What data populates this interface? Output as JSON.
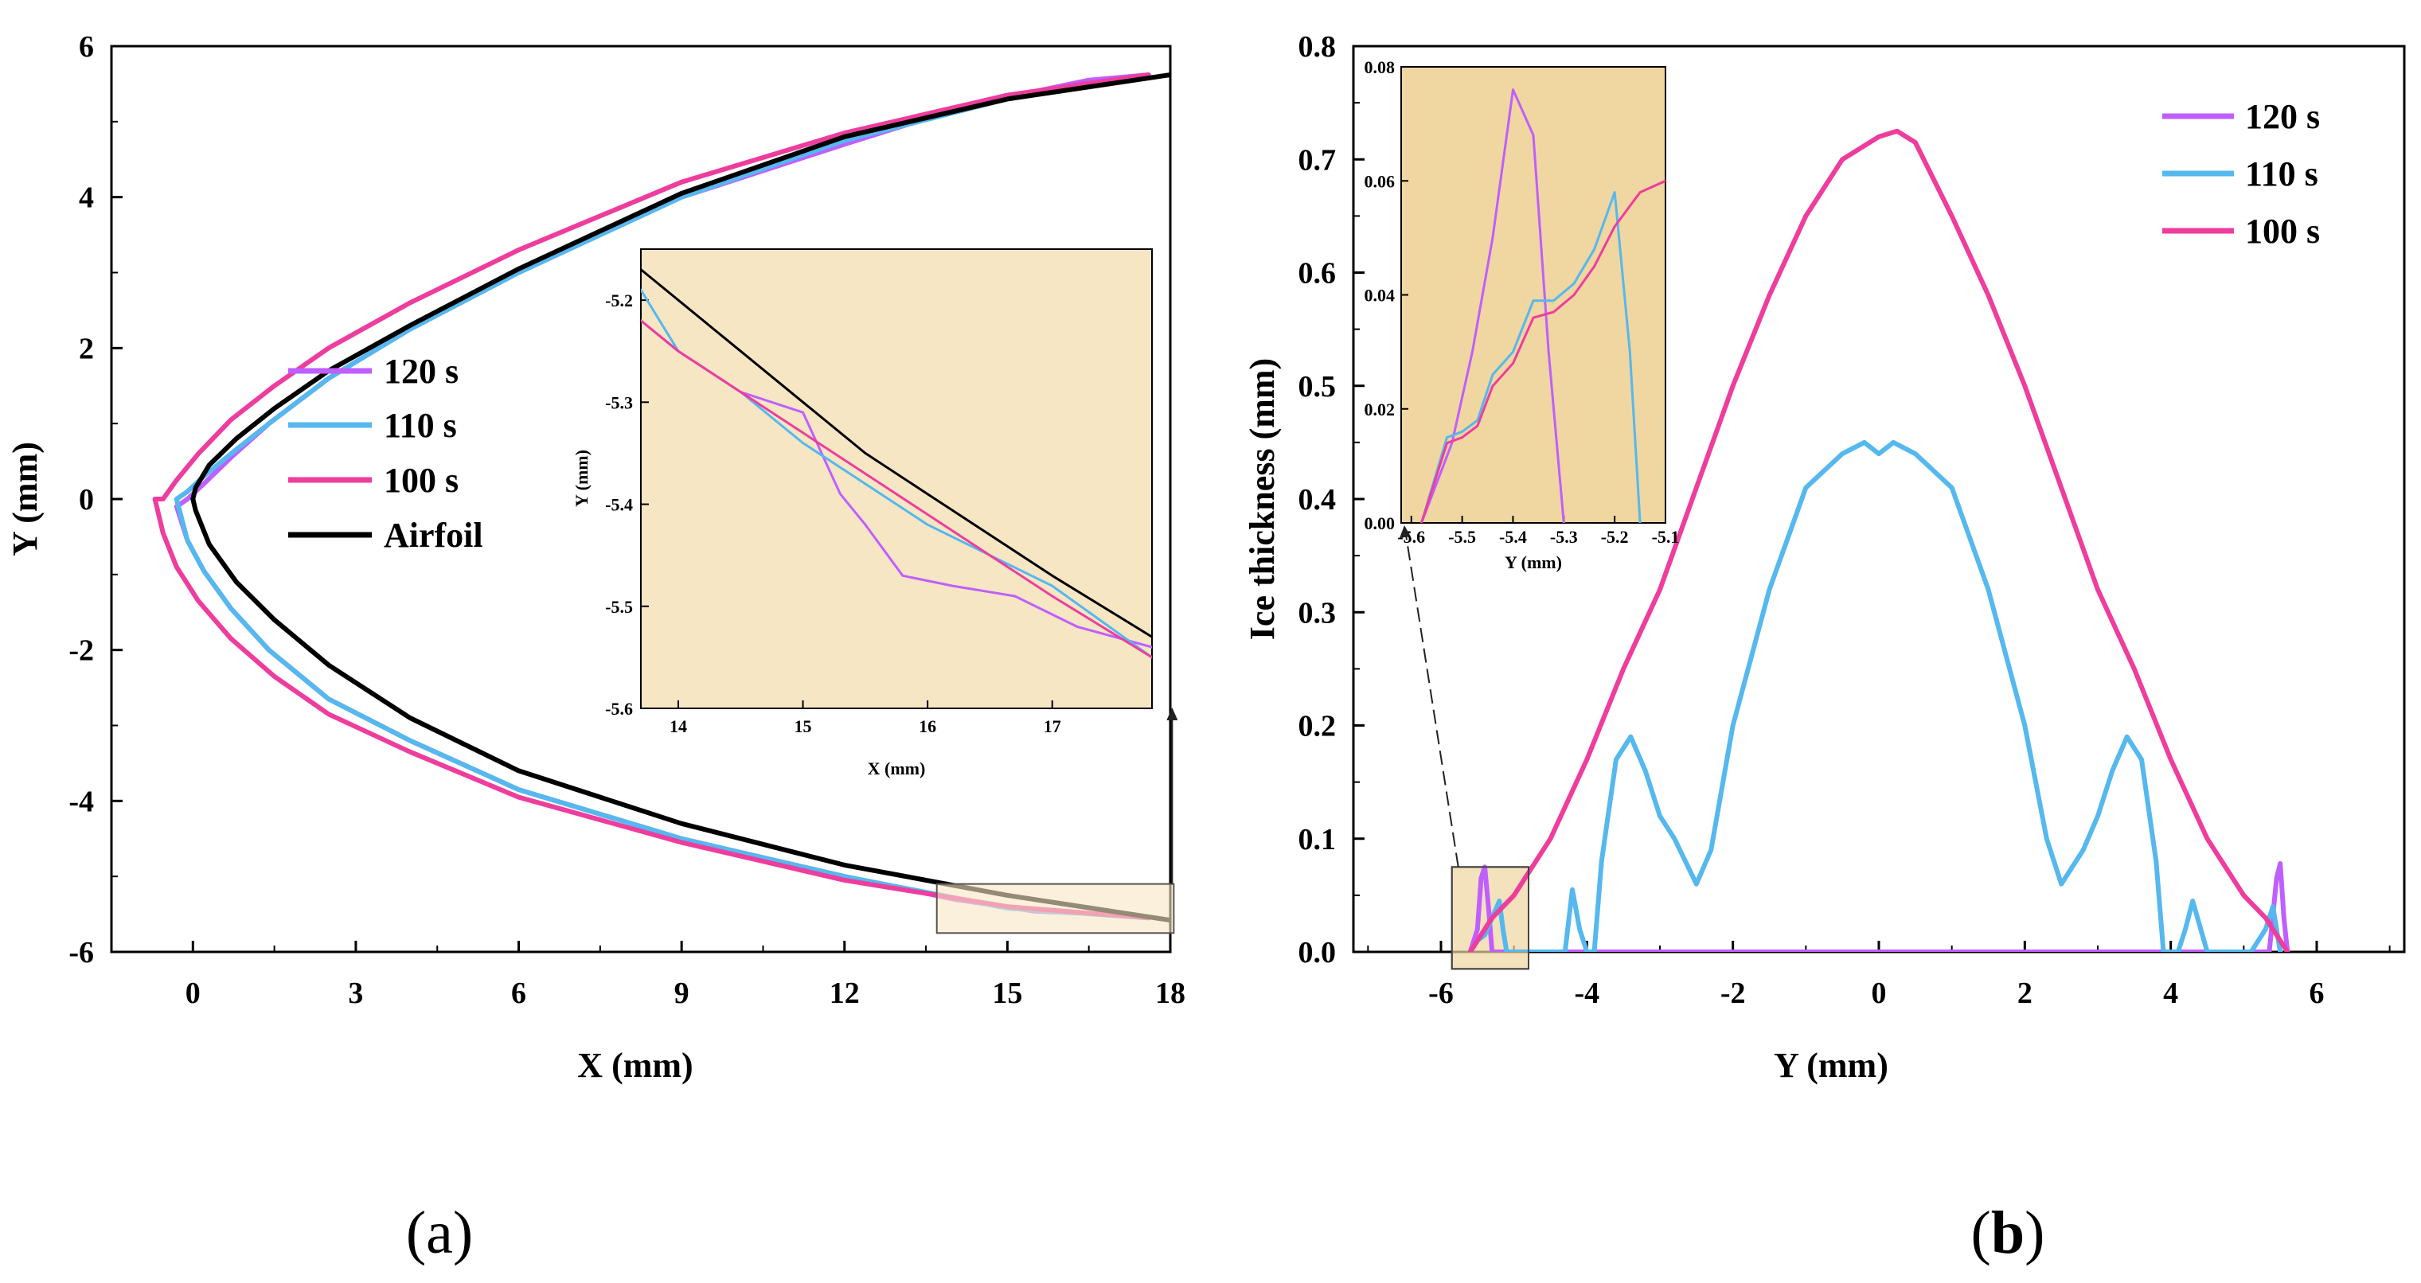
{
  "colors": {
    "c120": "#bf5fff",
    "c110": "#55b8ee",
    "c100": "#ee3d9d",
    "airfoil": "#000000",
    "inset_bg": "#f6e6c4",
    "inset_bg_b": "#f0d6a0"
  },
  "panel_labels": {
    "a": "(a)",
    "b_paren_open": "(",
    "b_letter": "b",
    "b_paren_close": ")"
  },
  "chart_data": [
    {
      "id": "a",
      "type": "line",
      "xlabel": "X (mm)",
      "ylabel": "Y (mm)",
      "xlim": [
        -1.5,
        18
      ],
      "ylim": [
        -6,
        6
      ],
      "xticks": [
        0,
        3,
        6,
        9,
        12,
        15,
        18
      ],
      "yticks": [
        -6,
        -4,
        -2,
        0,
        2,
        4,
        6
      ],
      "legend_position": "center-left",
      "legend": [
        "120 s",
        "110 s",
        "100 s",
        "Airfoil"
      ],
      "series": [
        {
          "name": "120 s",
          "x": [
            17.6,
            16.5,
            15.5,
            14.0,
            12.0,
            9.0,
            6.0,
            4.0,
            2.5,
            1.4,
            0.7,
            0.2,
            -0.1,
            -0.3,
            -0.1,
            0.2,
            0.7,
            1.4,
            2.5,
            4.0,
            6.0,
            9.0,
            12.0,
            14.0,
            15.5,
            16.5,
            17.6
          ],
          "y": [
            5.62,
            5.55,
            5.4,
            5.15,
            4.7,
            4.0,
            3.0,
            2.25,
            1.6,
            1.0,
            0.55,
            0.2,
            0.0,
            -0.1,
            -0.55,
            -0.95,
            -1.45,
            -2.0,
            -2.65,
            -3.2,
            -3.85,
            -4.5,
            -5.0,
            -5.3,
            -5.46,
            -5.49,
            -5.54
          ]
        },
        {
          "name": "110 s",
          "x": [
            17.6,
            15.0,
            12.0,
            9.0,
            6.0,
            4.0,
            2.5,
            1.4,
            0.7,
            0.2,
            -0.1,
            -0.3,
            -0.1,
            0.2,
            0.7,
            1.4,
            2.5,
            4.0,
            6.0,
            9.0,
            12.0,
            15.0,
            17.6
          ],
          "y": [
            5.62,
            5.3,
            4.75,
            4.0,
            3.0,
            2.25,
            1.6,
            1.0,
            0.6,
            0.3,
            0.1,
            0.0,
            -0.55,
            -0.95,
            -1.45,
            -2.0,
            -2.65,
            -3.2,
            -3.85,
            -4.5,
            -5.0,
            -5.42,
            -5.55
          ]
        },
        {
          "name": "100 s",
          "x": [
            17.6,
            15.0,
            12.0,
            9.0,
            6.0,
            4.0,
            2.5,
            1.5,
            0.7,
            0.1,
            -0.3,
            -0.55,
            -0.7,
            -0.55,
            -0.3,
            0.1,
            0.7,
            1.5,
            2.5,
            4.0,
            6.0,
            9.0,
            12.0,
            15.0,
            17.6
          ],
          "y": [
            5.62,
            5.35,
            4.85,
            4.2,
            3.3,
            2.6,
            2.0,
            1.5,
            1.05,
            0.6,
            0.25,
            0.0,
            0.0,
            -0.45,
            -0.9,
            -1.35,
            -1.85,
            -2.35,
            -2.85,
            -3.35,
            -3.95,
            -4.55,
            -5.05,
            -5.4,
            -5.55
          ]
        },
        {
          "name": "Airfoil",
          "x": [
            18.0,
            15.0,
            12.0,
            9.0,
            6.0,
            4.0,
            2.5,
            1.5,
            0.8,
            0.3,
            0.05,
            0.0,
            0.05,
            0.3,
            0.8,
            1.5,
            2.5,
            4.0,
            6.0,
            9.0,
            12.0,
            15.0,
            18.0
          ],
          "y": [
            5.62,
            5.3,
            4.8,
            4.05,
            3.05,
            2.3,
            1.7,
            1.2,
            0.8,
            0.45,
            0.15,
            0.0,
            -0.15,
            -0.6,
            -1.1,
            -1.6,
            -2.2,
            -2.9,
            -3.6,
            -4.3,
            -4.85,
            -5.25,
            -5.58
          ]
        }
      ],
      "inset": {
        "xlabel": "X (mm)",
        "ylabel": "Y (mm)",
        "xlim": [
          13.7,
          17.8
        ],
        "ylim": [
          -5.6,
          -5.15
        ],
        "xticks": [
          14,
          15,
          16,
          17
        ],
        "yticks": [
          -5.2,
          -5.3,
          -5.4,
          -5.5,
          -5.6
        ],
        "series": [
          {
            "name": "120 s",
            "x": [
              13.7,
              14.0,
              14.5,
              15.0,
              15.3,
              15.5,
              15.8,
              16.2,
              16.7,
              17.2,
              17.8
            ],
            "y": [
              -5.22,
              -5.25,
              -5.29,
              -5.31,
              -5.39,
              -5.42,
              -5.47,
              -5.48,
              -5.49,
              -5.52,
              -5.54
            ]
          },
          {
            "name": "110 s",
            "x": [
              13.7,
              14.0,
              14.5,
              15.0,
              15.5,
              16.0,
              16.5,
              17.0,
              17.8
            ],
            "y": [
              -5.19,
              -5.25,
              -5.29,
              -5.34,
              -5.38,
              -5.42,
              -5.45,
              -5.48,
              -5.55
            ]
          },
          {
            "name": "100 s",
            "x": [
              13.7,
              14.0,
              14.5,
              15.0,
              15.5,
              16.0,
              16.5,
              17.0,
              17.8
            ],
            "y": [
              -5.22,
              -5.25,
              -5.29,
              -5.33,
              -5.37,
              -5.41,
              -5.45,
              -5.49,
              -5.55
            ]
          },
          {
            "name": "Airfoil",
            "x": [
              13.7,
              14.5,
              15.0,
              15.5,
              16.0,
              16.5,
              17.0,
              17.8
            ],
            "y": [
              -5.17,
              -5.25,
              -5.3,
              -5.35,
              -5.39,
              -5.43,
              -5.47,
              -5.53
            ]
          }
        ]
      }
    },
    {
      "id": "b",
      "type": "line",
      "xlabel": "Y (mm)",
      "ylabel": "Ice thickness (mm)",
      "xlim": [
        -7.2,
        7.2
      ],
      "ylim": [
        0,
        0.8
      ],
      "xticks": [
        -6,
        -4,
        -2,
        0,
        2,
        4,
        6
      ],
      "yticks": [
        0.0,
        0.1,
        0.2,
        0.3,
        0.4,
        0.5,
        0.6,
        0.7,
        0.8
      ],
      "legend_position": "top-right",
      "legend": [
        "120 s",
        "110 s",
        "100 s"
      ],
      "series": [
        {
          "name": "120 s",
          "x": [
            -5.6,
            -5.5,
            -5.45,
            -5.4,
            -5.35,
            -5.3,
            -5.2,
            5.2,
            5.35,
            5.45,
            5.5,
            5.55,
            5.6
          ],
          "y": [
            0,
            0.02,
            0.065,
            0.075,
            0.04,
            0,
            0,
            0,
            0,
            0.065,
            0.078,
            0.03,
            0
          ]
        },
        {
          "name": "110 s",
          "x": [
            -5.6,
            -5.5,
            -5.4,
            -5.3,
            -5.2,
            -5.15,
            -5.1,
            -4.5,
            -4.3,
            -4.2,
            -4.1,
            -4.0,
            -3.9,
            -3.8,
            -3.6,
            -3.4,
            -3.2,
            -3.0,
            -2.8,
            -2.5,
            -2.3,
            -2.0,
            -1.5,
            -1.0,
            -0.5,
            -0.2,
            0.0,
            0.2,
            0.5,
            1.0,
            1.5,
            2.0,
            2.3,
            2.5,
            2.8,
            3.0,
            3.2,
            3.4,
            3.6,
            3.8,
            3.9,
            4.0,
            4.1,
            4.2,
            4.3,
            4.5,
            5.1,
            5.2,
            5.3,
            5.4,
            5.5
          ],
          "y": [
            0,
            0.01,
            0.015,
            0.03,
            0.045,
            0.02,
            0,
            0,
            0,
            0.055,
            0.02,
            0,
            0,
            0.08,
            0.17,
            0.19,
            0.16,
            0.12,
            0.1,
            0.06,
            0.09,
            0.2,
            0.32,
            0.41,
            0.44,
            0.45,
            0.44,
            0.45,
            0.44,
            0.41,
            0.32,
            0.2,
            0.1,
            0.06,
            0.09,
            0.12,
            0.16,
            0.19,
            0.17,
            0.08,
            0,
            0,
            0,
            0.02,
            0.045,
            0,
            0,
            0.01,
            0.02,
            0.04,
            0
          ]
        },
        {
          "name": "100 s",
          "x": [
            -5.6,
            -5.5,
            -5.3,
            -5.0,
            -4.5,
            -4.0,
            -3.5,
            -3.0,
            -2.5,
            -2.0,
            -1.5,
            -1.0,
            -0.5,
            0.0,
            0.25,
            0.5,
            1.0,
            1.5,
            2.0,
            2.5,
            3.0,
            3.5,
            4.0,
            4.5,
            5.0,
            5.3,
            5.5,
            5.6
          ],
          "y": [
            0,
            0.01,
            0.03,
            0.05,
            0.1,
            0.17,
            0.25,
            0.32,
            0.41,
            0.5,
            0.58,
            0.65,
            0.7,
            0.72,
            0.725,
            0.715,
            0.65,
            0.58,
            0.5,
            0.41,
            0.32,
            0.25,
            0.17,
            0.1,
            0.05,
            0.03,
            0.01,
            0
          ]
        }
      ],
      "inset": {
        "xlabel": "Y (mm)",
        "xlim": [
          -5.62,
          -5.1
        ],
        "ylim": [
          0,
          0.08
        ],
        "xticks": [
          -5.6,
          -5.5,
          -5.4,
          -5.3,
          -5.2,
          -5.1
        ],
        "xtick_labels": [
          "-5.6",
          "-5.5",
          "-5.4",
          "-5.3",
          "-5.2",
          "-5.1"
        ],
        "yticks": [
          0,
          0.02,
          0.04,
          0.06,
          0.08
        ],
        "ytick_labels": [
          "0.00",
          "0.02",
          "0.04",
          "0.06",
          "0.08"
        ],
        "series": [
          {
            "name": "120 s",
            "x": [
              -5.58,
              -5.52,
              -5.48,
              -5.44,
              -5.4,
              -5.36,
              -5.33,
              -5.3
            ],
            "y": [
              0.0,
              0.014,
              0.03,
              0.05,
              0.076,
              0.068,
              0.03,
              0.0
            ]
          },
          {
            "name": "110 s",
            "x": [
              -5.58,
              -5.53,
              -5.5,
              -5.47,
              -5.44,
              -5.4,
              -5.36,
              -5.32,
              -5.28,
              -5.24,
              -5.2,
              -5.17,
              -5.15
            ],
            "y": [
              0.0,
              0.015,
              0.016,
              0.018,
              0.026,
              0.03,
              0.039,
              0.039,
              0.042,
              0.048,
              0.058,
              0.03,
              0.0
            ]
          },
          {
            "name": "100 s",
            "x": [
              -5.58,
              -5.53,
              -5.5,
              -5.47,
              -5.44,
              -5.4,
              -5.36,
              -5.32,
              -5.28,
              -5.24,
              -5.2,
              -5.15,
              -5.1
            ],
            "y": [
              0.0,
              0.014,
              0.015,
              0.017,
              0.024,
              0.028,
              0.036,
              0.037,
              0.04,
              0.045,
              0.052,
              0.058,
              0.06
            ]
          }
        ]
      }
    }
  ]
}
